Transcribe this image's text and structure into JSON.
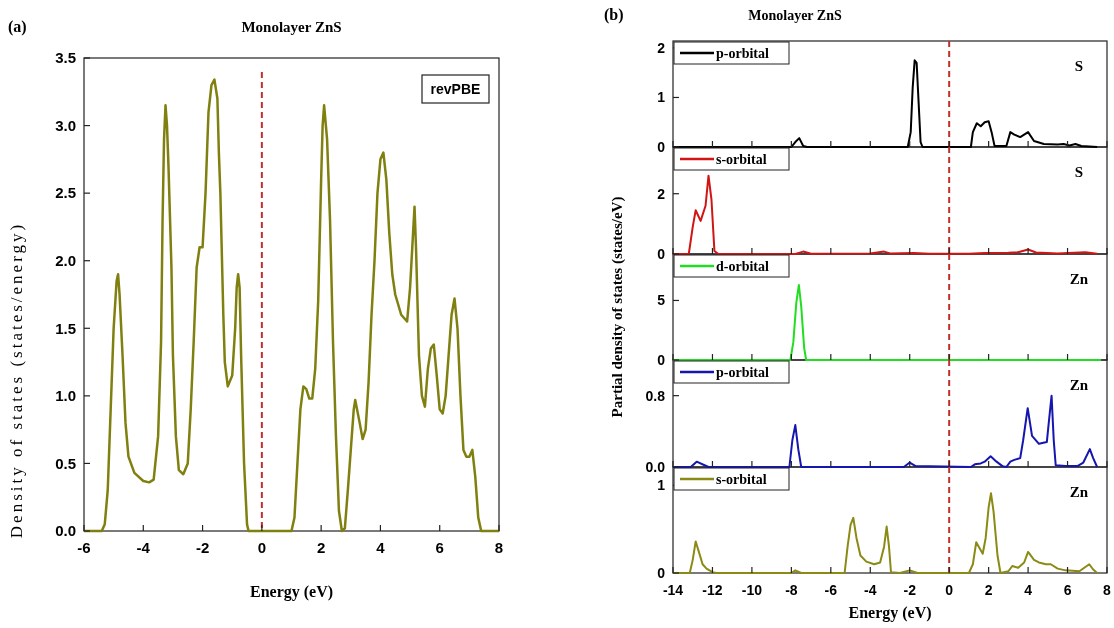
{
  "chart_data": [
    {
      "type": "line",
      "title": "Monolayer ZnS",
      "xlabel": "Energy (eV)",
      "ylabel": "Density of states (states/energy)",
      "annotations": [
        "(a)",
        "revPBE"
      ],
      "xlim": [
        -6,
        8
      ],
      "ylim": [
        0,
        3.5
      ],
      "xticks": [
        -6,
        -4,
        -2,
        0,
        2,
        4,
        6,
        8
      ],
      "yticks": [
        {
          "value": 0,
          "label": "0.0"
        },
        0.5,
        {
          "value": 1,
          "label": "1.0"
        },
        1.5,
        {
          "value": 2,
          "label": "2.0"
        },
        2.5,
        {
          "value": 3,
          "label": "3.0"
        },
        3.5
      ],
      "ref_lines": [
        {
          "axis": "x",
          "value": 0,
          "color": "#c0302a",
          "line_style": "dashed"
        }
      ],
      "series": [
        {
          "color": "#808010",
          "x": [
            -6,
            -5.4,
            -5.3,
            -5.2,
            -5.1,
            -5.0,
            -4.9,
            -4.85,
            -4.8,
            -4.7,
            -4.6,
            -4.5,
            -4.3,
            -4.0,
            -3.8,
            -3.65,
            -3.5,
            -3.4,
            -3.35,
            -3.3,
            -3.25,
            -3.2,
            -3.15,
            -3.05,
            -3.0,
            -2.9,
            -2.8,
            -2.65,
            -2.5,
            -2.4,
            -2.3,
            -2.2,
            -2.1,
            -2.0,
            -1.9,
            -1.8,
            -1.7,
            -1.6,
            -1.5,
            -1.45,
            -1.4,
            -1.3,
            -1.25,
            -1.15,
            -1.0,
            -0.9,
            -0.85,
            -0.8,
            -0.75,
            -0.7,
            -0.6,
            -0.5,
            -0.45,
            1.0,
            1.1,
            1.2,
            1.3,
            1.4,
            1.5,
            1.6,
            1.7,
            1.8,
            1.9,
            2.0,
            2.05,
            2.1,
            2.2,
            2.3,
            2.4,
            2.5,
            2.6,
            2.7,
            2.8,
            2.9,
            3.0,
            3.1,
            3.15,
            3.3,
            3.4,
            3.5,
            3.6,
            3.7,
            3.8,
            3.9,
            4.0,
            4.1,
            4.2,
            4.3,
            4.4,
            4.5,
            4.7,
            4.9,
            5.0,
            5.1,
            5.15,
            5.2,
            5.3,
            5.4,
            5.5,
            5.6,
            5.7,
            5.8,
            5.9,
            6.0,
            6.1,
            6.2,
            6.3,
            6.4,
            6.5,
            6.6,
            6.7,
            6.8,
            6.9,
            7.0,
            7.1,
            7.2,
            7.3,
            7.4,
            8
          ],
          "values": [
            0,
            0,
            0.05,
            0.3,
            0.9,
            1.5,
            1.85,
            1.9,
            1.75,
            1.3,
            0.8,
            0.55,
            0.43,
            0.37,
            0.36,
            0.38,
            0.7,
            1.4,
            2.3,
            2.9,
            3.15,
            3.0,
            2.7,
            1.95,
            1.3,
            0.7,
            0.45,
            0.42,
            0.5,
            0.9,
            1.4,
            1.95,
            2.1,
            2.1,
            2.5,
            3.1,
            3.3,
            3.34,
            3.2,
            2.8,
            2.5,
            1.6,
            1.25,
            1.07,
            1.15,
            1.5,
            1.8,
            1.9,
            1.8,
            1.3,
            0.5,
            0.05,
            0,
            0,
            0.1,
            0.5,
            0.9,
            1.07,
            1.05,
            0.98,
            0.98,
            1.2,
            1.7,
            2.6,
            3.0,
            3.15,
            2.9,
            2.3,
            1.4,
            0.7,
            0.15,
            0,
            0.02,
            0.3,
            0.6,
            0.9,
            0.97,
            0.8,
            0.68,
            0.75,
            1.1,
            1.6,
            2.0,
            2.5,
            2.75,
            2.8,
            2.6,
            2.2,
            1.9,
            1.75,
            1.6,
            1.55,
            1.8,
            2.2,
            2.4,
            2.1,
            1.3,
            1.0,
            0.92,
            1.2,
            1.35,
            1.38,
            1.15,
            0.9,
            0.87,
            1.0,
            1.3,
            1.6,
            1.72,
            1.5,
            1.0,
            0.6,
            0.55,
            0.55,
            0.6,
            0.4,
            0.1,
            0,
            0
          ]
        }
      ]
    },
    {
      "type": "line",
      "title": "Monolayer ZnS",
      "annotations": [
        "(b)",
        "S"
      ],
      "legend": "top left",
      "tick_labels": "y",
      "xlim": [
        -14,
        8
      ],
      "ylim": [
        0,
        2.14
      ],
      "xticks": [
        -14,
        -12,
        -10,
        -8,
        -6,
        -4,
        -2,
        0,
        2,
        4,
        6,
        8
      ],
      "yticks": [
        0,
        1,
        2
      ],
      "ref_lines": [
        {
          "axis": "x",
          "value": 0,
          "color": "#c0302a",
          "line_style": "dashed"
        }
      ],
      "series": [
        {
          "name": "p-orbital",
          "color": "#000000",
          "x": [
            -14,
            -8.0,
            -7.8,
            -7.6,
            -7.4,
            -7.2,
            -2.1,
            -1.95,
            -1.85,
            -1.75,
            -1.65,
            -1.55,
            -1.45,
            -1.35,
            1.1,
            1.2,
            1.4,
            1.6,
            1.8,
            2.0,
            2.15,
            2.3,
            2.9,
            3.1,
            3.3,
            3.6,
            4.0,
            4.3,
            4.8,
            5.5,
            5.8,
            6.1,
            6.4,
            6.7,
            7.5
          ],
          "values": [
            0,
            0,
            0.1,
            0.18,
            0.02,
            0,
            0,
            0.3,
            1.2,
            1.75,
            1.7,
            0.9,
            0.1,
            0,
            0,
            0.3,
            0.48,
            0.42,
            0.5,
            0.52,
            0.3,
            0.02,
            0.02,
            0.3,
            0.25,
            0.2,
            0.3,
            0.12,
            0.06,
            0.05,
            0.06,
            0.03,
            0.06,
            0.02,
            0
          ]
        }
      ]
    },
    {
      "type": "line",
      "annotations": [
        "S"
      ],
      "legend": "top left",
      "tick_labels": "y",
      "xlim": [
        -14,
        8
      ],
      "ylim": [
        0,
        3.55
      ],
      "xticks": [
        -14,
        -12,
        -10,
        -8,
        -6,
        -4,
        -2,
        0,
        2,
        4,
        6,
        8
      ],
      "yticks": [
        0,
        2
      ],
      "ref_lines": [
        {
          "axis": "x",
          "value": 0,
          "color": "#c0302a",
          "line_style": "dashed"
        }
      ],
      "series": [
        {
          "name": "s-orbital",
          "color": "#d01515",
          "x": [
            -14,
            -13.2,
            -13.0,
            -12.85,
            -12.6,
            -12.35,
            -12.2,
            -12.05,
            -11.9,
            -11.7,
            -7.8,
            -7.4,
            -7.0,
            -4.0,
            -3.3,
            -3.0,
            -1.8,
            -1.0,
            1.0,
            1.8,
            3.0,
            3.5,
            4.0,
            4.4,
            5.5,
            6.9,
            7.5
          ],
          "values": [
            0,
            0,
            0.9,
            1.45,
            1.1,
            1.6,
            2.6,
            1.8,
            0.1,
            0,
            0,
            0.08,
            0.01,
            0.02,
            0.08,
            0.02,
            0.03,
            0.01,
            0.01,
            0.03,
            0.04,
            0.06,
            0.15,
            0.05,
            0.02,
            0.06,
            0.01
          ]
        }
      ]
    },
    {
      "type": "line",
      "ylabel": "Partial density of states (states/eV)",
      "annotations": [
        "Zn"
      ],
      "legend": "top left",
      "tick_labels": "y",
      "xlim": [
        -14,
        8
      ],
      "ylim": [
        0,
        8.9
      ],
      "xticks": [
        -14,
        -12,
        -10,
        -8,
        -6,
        -4,
        -2,
        0,
        2,
        4,
        6,
        8
      ],
      "yticks": [
        0,
        5
      ],
      "ref_lines": [
        {
          "axis": "x",
          "value": 0,
          "color": "#c0302a",
          "line_style": "dashed"
        }
      ],
      "series": [
        {
          "name": "d-orbital",
          "color": "#22dd22",
          "x": [
            -14,
            -8.05,
            -7.9,
            -7.75,
            -7.62,
            -7.5,
            -7.35,
            -7.25,
            7.7
          ],
          "values": [
            0,
            0,
            1.5,
            4.8,
            6.3,
            4.5,
            1,
            0,
            0
          ]
        }
      ]
    },
    {
      "type": "line",
      "annotations": [
        "Zn"
      ],
      "legend": "top left",
      "tick_labels": "y",
      "xlim": [
        -14,
        8
      ],
      "ylim": [
        0,
        1.2
      ],
      "xticks": [
        -14,
        -12,
        -10,
        -8,
        -6,
        -4,
        -2,
        0,
        2,
        4,
        6,
        8
      ],
      "yticks": [
        {
          "value": 0,
          "label": "0.0"
        },
        0.8
      ],
      "ref_lines": [
        {
          "axis": "x",
          "value": 0,
          "color": "#c0302a",
          "line_style": "dashed"
        }
      ],
      "series": [
        {
          "name": "p-orbital",
          "color": "#1515b0",
          "x": [
            -14,
            -13.1,
            -12.8,
            -12.4,
            -12.2,
            -8.1,
            -7.95,
            -7.8,
            -7.65,
            -7.5,
            -2.3,
            -2.0,
            -1.7,
            1.1,
            1.3,
            1.6,
            1.8,
            2.1,
            2.4,
            2.7,
            2.9,
            3.1,
            3.3,
            3.6,
            3.75,
            3.98,
            4.2,
            4.55,
            4.95,
            5.05,
            5.19,
            5.3,
            5.4,
            5.9,
            6.5,
            6.8,
            7.13,
            7.3,
            7.5
          ],
          "values": [
            0,
            0,
            0.06,
            0.02,
            0,
            0,
            0.3,
            0.47,
            0.2,
            0,
            0,
            0.05,
            0.01,
            0,
            0.03,
            0.04,
            0.06,
            0.12,
            0.06,
            0.01,
            0,
            0.06,
            0.08,
            0.1,
            0.3,
            0.66,
            0.35,
            0.26,
            0.28,
            0.5,
            0.8,
            0.3,
            0.02,
            0.01,
            0.01,
            0.05,
            0.2,
            0.1,
            0
          ]
        }
      ]
    },
    {
      "type": "line",
      "xlabel": "Energy (eV)",
      "annotations": [
        "Zn"
      ],
      "legend": "top left",
      "xlim": [
        -14,
        8
      ],
      "ylim": [
        0,
        1.21
      ],
      "xticks": [
        -14,
        -12,
        -10,
        -8,
        -6,
        -4,
        -2,
        0,
        2,
        4,
        6,
        8
      ],
      "yticks": [
        0,
        1
      ],
      "ref_lines": [
        {
          "axis": "x",
          "value": 0,
          "color": "#c0302a",
          "line_style": "dashed"
        }
      ],
      "series": [
        {
          "name": "s-orbital",
          "color": "#8a8a15",
          "x": [
            -14,
            -13.15,
            -13.0,
            -12.85,
            -12.7,
            -12.5,
            -12.3,
            -12.0,
            -11.8,
            -8.0,
            -7.8,
            -7.5,
            -5.3,
            -5.15,
            -5.0,
            -4.86,
            -4.7,
            -4.5,
            -4.2,
            -3.8,
            -3.5,
            -3.3,
            -3.17,
            -3.05,
            -2.95,
            -2.5,
            -2.0,
            -1.6,
            1.0,
            1.2,
            1.37,
            1.55,
            1.7,
            1.85,
            2.0,
            2.12,
            2.25,
            2.45,
            2.6,
            3.0,
            3.2,
            3.5,
            3.8,
            4.0,
            4.3,
            4.55,
            4.9,
            5.15,
            5.5,
            5.9,
            6.6,
            7.1,
            7.3,
            7.5
          ],
          "values": [
            0,
            0,
            0.15,
            0.36,
            0.25,
            0.1,
            0.05,
            0.01,
            0,
            0,
            0.03,
            0,
            0,
            0.3,
            0.55,
            0.63,
            0.4,
            0.2,
            0.13,
            0.1,
            0.12,
            0.3,
            0.53,
            0.3,
            0.01,
            0,
            0.03,
            0,
            0,
            0.1,
            0.35,
            0.28,
            0.22,
            0.4,
            0.75,
            0.91,
            0.7,
            0.2,
            0,
            0.02,
            0.08,
            0.06,
            0.12,
            0.24,
            0.15,
            0.12,
            0.1,
            0.1,
            0.05,
            0.03,
            0.02,
            0.1,
            0.04,
            0
          ]
        }
      ]
    }
  ]
}
